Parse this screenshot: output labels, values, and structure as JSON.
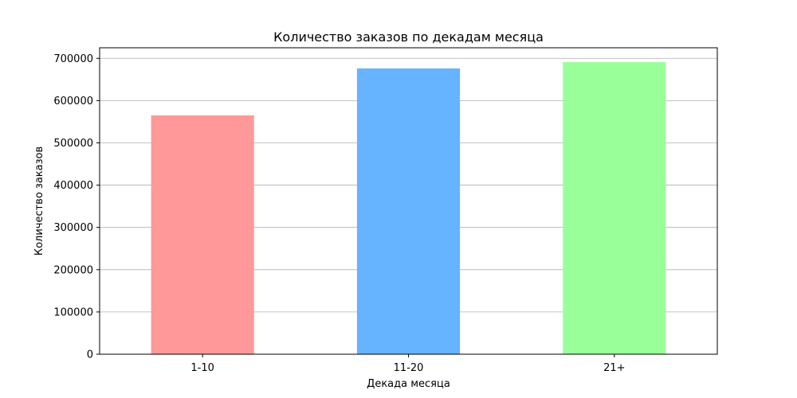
{
  "chart_data": {
    "type": "bar",
    "title": "Количество заказов по декадам месяца",
    "xlabel": "Декада месяца",
    "ylabel": "Количество заказов",
    "categories": [
      "1-10",
      "11-20",
      "21+"
    ],
    "values": [
      565000,
      676000,
      691000
    ],
    "colors": [
      "#ff9999",
      "#66b3ff",
      "#99ff99"
    ],
    "ylim": [
      0,
      725000
    ],
    "yticks": [
      0,
      100000,
      200000,
      300000,
      400000,
      500000,
      600000,
      700000
    ],
    "grid": "y"
  }
}
